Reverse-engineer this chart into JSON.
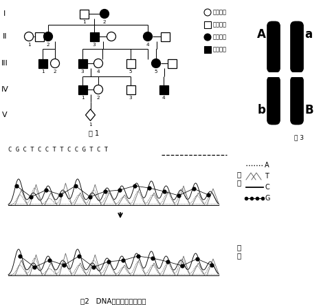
{
  "fig1_label": "图 1",
  "fig2_label": "图2   DNA编码链的碱基序列",
  "fig3_label": "图 3",
  "dna_sequence": "C G C T C C T T C C G T C T",
  "normal_female_label": "正常女性",
  "normal_male_label": "正常男性",
  "affected_female_label": "患病女性",
  "affected_male_label": "患病男性",
  "zhengchang_label": "正\n常",
  "huanzhe_label": "患\n者",
  "bg_color": "#ffffff",
  "black": "#000000",
  "gray": "#666666",
  "gen_labels": [
    "I",
    "II",
    "III",
    "IV",
    "V"
  ],
  "legend_entries": [
    "A",
    "T",
    "C",
    "G"
  ],
  "chr_labels_left": [
    "A",
    "b"
  ],
  "chr_labels_right": [
    "a",
    "B"
  ]
}
